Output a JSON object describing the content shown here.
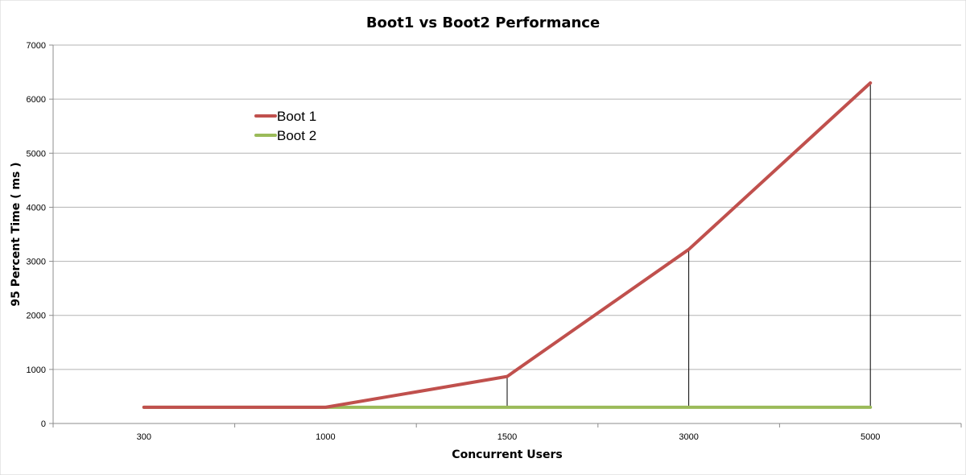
{
  "chart_data": {
    "type": "line",
    "title": "Boot1 vs Boot2 Performance",
    "xlabel": "Concurrent Users",
    "ylabel": "95 Percent Time ( ms )",
    "categories": [
      "300",
      "1000",
      "1500",
      "3000",
      "5000"
    ],
    "ylim": [
      0,
      7000
    ],
    "yticks": [
      0,
      1000,
      2000,
      3000,
      4000,
      5000,
      6000,
      7000
    ],
    "grid": true,
    "legend_position": "top-left",
    "series": [
      {
        "name": "Boot 1",
        "color": "#c0504d",
        "values": [
          300,
          300,
          870,
          3220,
          6300
        ]
      },
      {
        "name": "Boot 2",
        "color": "#9bbb59",
        "values": [
          300,
          300,
          300,
          300,
          300
        ]
      }
    ]
  }
}
